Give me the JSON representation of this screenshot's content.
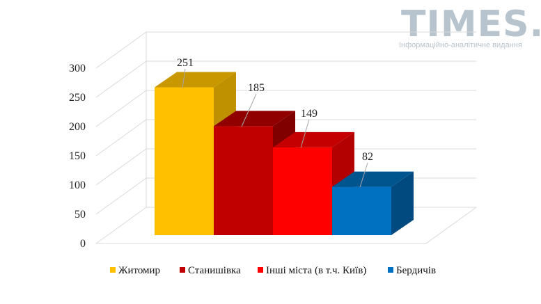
{
  "watermark": {
    "title": "TIMES.ZT",
    "subtitle": "Інформаційно-аналітичне видання"
  },
  "chart_data": {
    "type": "bar",
    "style": "3d-column",
    "categories": [
      "Житомир",
      "Станишівка",
      "Інші міста (в т.ч. Київ)",
      "Бердичів"
    ],
    "values": [
      251,
      185,
      149,
      82
    ],
    "data_labels": [
      "251",
      "185",
      "149",
      "82"
    ],
    "yticks": [
      "0",
      "50",
      "100",
      "150",
      "200",
      "250",
      "300"
    ],
    "ylim": [
      0,
      300
    ],
    "grid": true,
    "legend_position": "bottom",
    "colors": {
      "Житомир": {
        "front": "#ffc000",
        "side": "#bf9000",
        "top": "#c99700"
      },
      "Станишівка": {
        "front": "#c00000",
        "side": "#800000",
        "top": "#900000"
      },
      "Інші міста (в т.ч. Київ)": {
        "front": "#ff0000",
        "side": "#b30000",
        "top": "#c40000"
      },
      "Бердичів": {
        "front": "#0070c0",
        "side": "#004a80",
        "top": "#00558f"
      }
    }
  }
}
